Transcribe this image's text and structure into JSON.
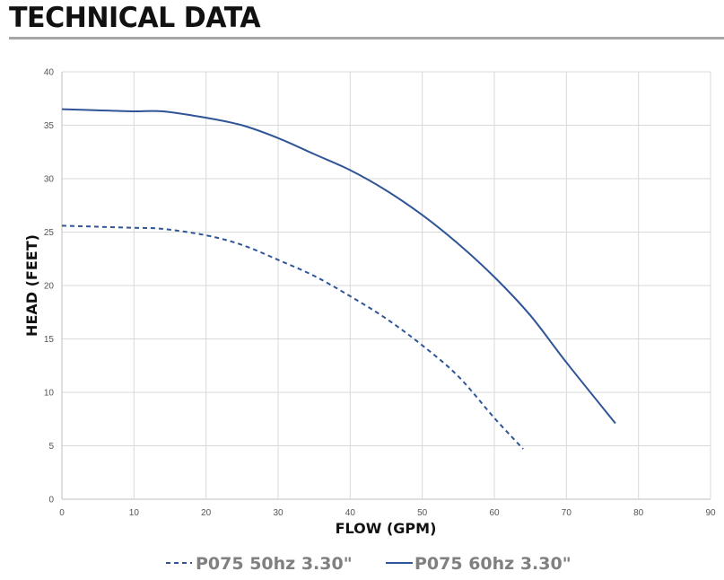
{
  "page": {
    "title": "TECHNICAL DATA"
  },
  "chart_data": {
    "type": "line",
    "xlabel": "FLOW (GPM)",
    "ylabel": "HEAD (FEET)",
    "xlim": [
      0,
      90
    ],
    "ylim": [
      0,
      40
    ],
    "xticks": [
      0,
      10,
      20,
      30,
      40,
      50,
      60,
      70,
      80,
      90
    ],
    "yticks": [
      0,
      5,
      10,
      15,
      20,
      25,
      30,
      35,
      40
    ],
    "grid": true,
    "legend": "bottom-center",
    "series": [
      {
        "name": "P075 50hz 3.30\"",
        "style": "dashed",
        "color": "#2f5597",
        "x": [
          0,
          5,
          10,
          14,
          20,
          25,
          30,
          35,
          40,
          45,
          50,
          55,
          60,
          64
        ],
        "y": [
          25.6,
          25.5,
          25.4,
          25.3,
          24.7,
          23.8,
          22.4,
          20.9,
          19.0,
          16.9,
          14.4,
          11.5,
          7.6,
          4.7
        ]
      },
      {
        "name": "P075 60hz 3.30\"",
        "style": "solid",
        "color": "#2f5597",
        "x": [
          0,
          5,
          10,
          14,
          20,
          25,
          30,
          35,
          40,
          45,
          50,
          55,
          60,
          65,
          70,
          76.8
        ],
        "y": [
          36.5,
          36.4,
          36.3,
          36.3,
          35.7,
          35.0,
          33.8,
          32.3,
          30.8,
          28.9,
          26.6,
          23.9,
          20.8,
          17.2,
          12.8,
          7.1
        ]
      }
    ]
  }
}
